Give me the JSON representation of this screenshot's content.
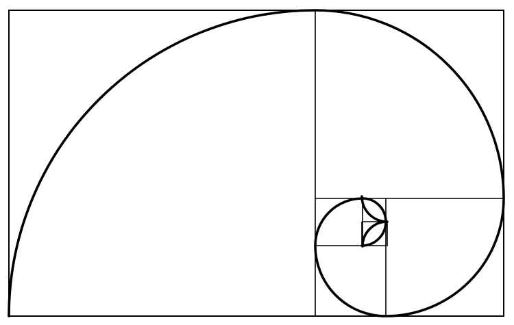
{
  "diagram": {
    "kind": "golden-spiral",
    "line_color": "#000000",
    "background": "#ffffff",
    "square_count": 10,
    "spiral_quarter_arcs": 10
  }
}
